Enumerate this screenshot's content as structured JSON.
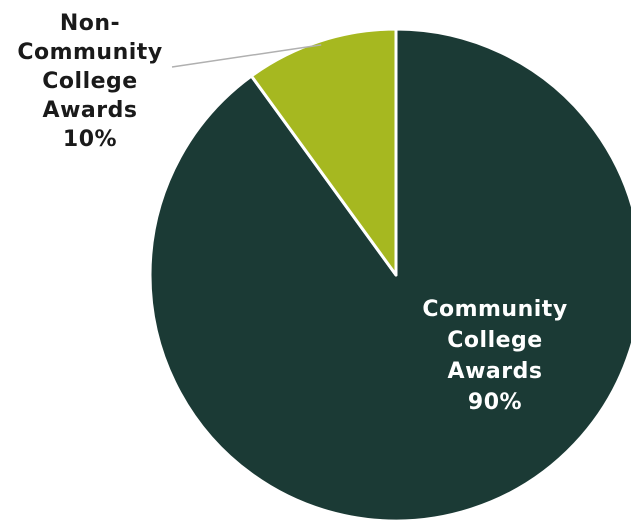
{
  "chart_data": {
    "type": "pie",
    "slices": [
      {
        "label_lines": [
          "Community",
          "College",
          "Awards"
        ],
        "percent_label": "90%",
        "value": 90,
        "color": "#1b3a35",
        "label_color": "#ffffff"
      },
      {
        "label_lines": [
          "Non-",
          "Community",
          "College",
          "Awards"
        ],
        "percent_label": "10%",
        "value": 10,
        "color": "#a6b820",
        "label_color": "#1a1a1a"
      }
    ],
    "start_angle_deg": 0,
    "direction": "clockwise",
    "legend": "none"
  }
}
